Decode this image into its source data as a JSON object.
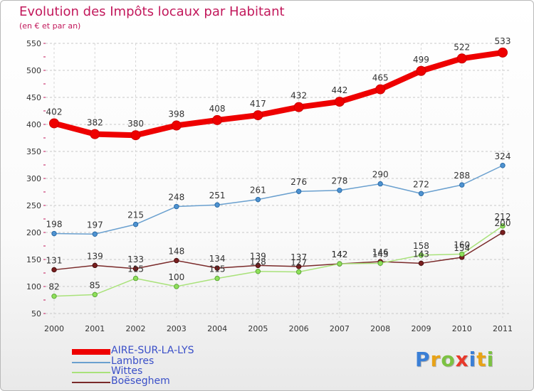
{
  "title": "Evolution des Impôts locaux par Habitant",
  "subtitle": "(en € et par an)",
  "brand": {
    "letters": [
      {
        "ch": "P",
        "color": "#3a7fd6"
      },
      {
        "ch": "r",
        "color": "#e8a317"
      },
      {
        "ch": "o",
        "color": "#7cc242"
      },
      {
        "ch": "x",
        "color": "#e8392b"
      },
      {
        "ch": "i",
        "color": "#3a7fd6"
      },
      {
        "ch": "t",
        "color": "#e8a317"
      },
      {
        "ch": "i",
        "color": "#7cc242"
      }
    ]
  },
  "legend": [
    {
      "name": "AIRE-SUR-LA-LYS",
      "color": "#ee0000"
    },
    {
      "name": "Lambres",
      "color": "#6aa0cf"
    },
    {
      "name": "Wittes",
      "color": "#a9e27a"
    },
    {
      "name": "Boëseghem",
      "color": "#7a2a2a"
    }
  ],
  "chart_data": {
    "type": "line",
    "title": "Evolution des Impôts locaux par Habitant",
    "subtitle": "(en € et par an)",
    "xlabel": "",
    "ylabel": "",
    "ylim": [
      50,
      550
    ],
    "yticks": [
      "50",
      "100",
      "150",
      "200",
      "250",
      "300",
      "350",
      "400",
      "450",
      "500",
      "550"
    ],
    "grid": "horizontal dashed",
    "legend_position": "bottom-left",
    "categories": [
      "2000",
      "2001",
      "2002",
      "2003",
      "2004",
      "2005",
      "2006",
      "2007",
      "2008",
      "2009",
      "2010",
      "2011"
    ],
    "series": [
      {
        "name": "AIRE-SUR-LA-LYS",
        "color": "#ee0000",
        "values": [
          402,
          382,
          380,
          398,
          408,
          417,
          432,
          442,
          465,
          499,
          522,
          533
        ],
        "labels": [
          "402",
          "382",
          "380",
          "398",
          "408",
          "417",
          "432",
          "442",
          "465",
          "499",
          "522",
          "533"
        ]
      },
      {
        "name": "Lambres",
        "color": "#5b93c9",
        "values": [
          198,
          197,
          215,
          248,
          251,
          261,
          276,
          278,
          290,
          272,
          288,
          324
        ],
        "labels": [
          "198",
          "197",
          "215",
          "248",
          "251",
          "261",
          "276",
          "278",
          "290",
          "272",
          "288",
          "324"
        ]
      },
      {
        "name": "Wittes",
        "color": "#9ad86a",
        "values": [
          82,
          85,
          115,
          100,
          115,
          128,
          127,
          142,
          143,
          158,
          160,
          212
        ],
        "labels": [
          "82",
          "85",
          "115",
          "100",
          "115",
          "128",
          "127",
          "142",
          "143",
          "158",
          "160",
          "212"
        ]
      },
      {
        "name": "Boëseghem",
        "color": "#7a2a2a",
        "values": [
          131,
          139,
          133,
          148,
          134,
          139,
          137,
          142,
          146,
          143,
          154,
          200
        ],
        "labels": [
          "131",
          "139",
          "133",
          "148",
          "134",
          "139",
          "137",
          "142",
          "146",
          "143",
          "154",
          "200"
        ]
      }
    ]
  }
}
